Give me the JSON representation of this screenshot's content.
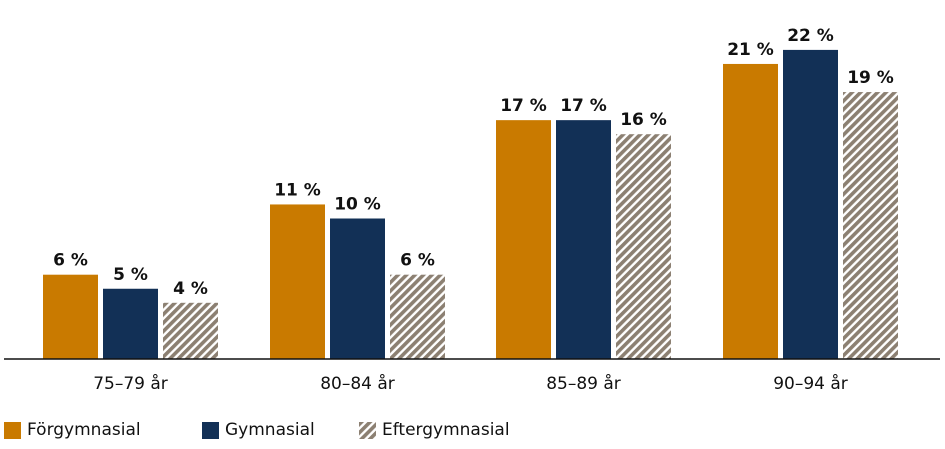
{
  "chart_data": {
    "type": "bar",
    "categories": [
      "75–79 år",
      "80–84 år",
      "85–89 år",
      "90–94 år"
    ],
    "series": [
      {
        "name": "Förgymnasial",
        "values": [
          6,
          11,
          17,
          21
        ],
        "labels": [
          "6 %",
          "11 %",
          "17 %",
          "21 %"
        ],
        "color": "#c97a00",
        "pattern": "solid"
      },
      {
        "name": "Gymnasial",
        "values": [
          5,
          10,
          17,
          22
        ],
        "labels": [
          "5 %",
          "10 %",
          "17 %",
          "22 %"
        ],
        "color": "#123056",
        "pattern": "solid"
      },
      {
        "name": "Eftergymnasial",
        "values": [
          4,
          6,
          16,
          19
        ],
        "labels": [
          "4 %",
          "6 %",
          "16 %",
          "19 %"
        ],
        "color": "#8c8072",
        "pattern": "diagonal-stripes"
      }
    ],
    "ylim": [
      0,
      22
    ],
    "unit": "%",
    "grid": false,
    "legend_position": "bottom-left"
  }
}
